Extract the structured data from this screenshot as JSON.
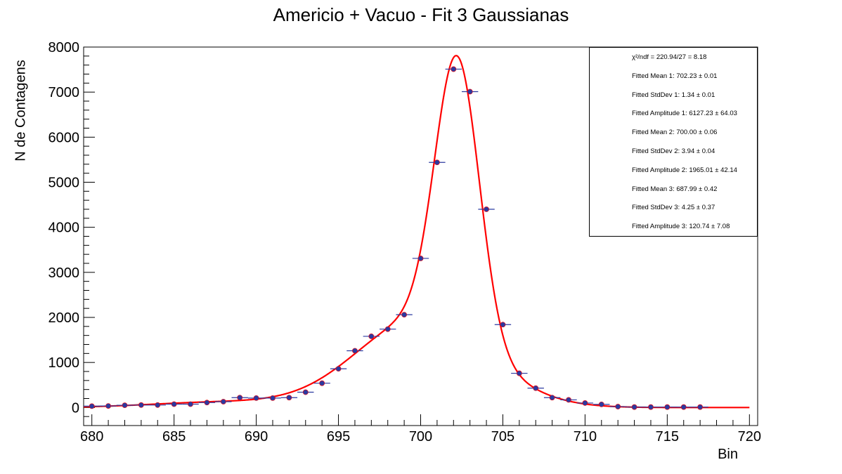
{
  "chart_data": {
    "type": "scatter",
    "title": "Americio + Vacuo - Fit 3 Gaussianas",
    "xlabel": "Bin",
    "ylabel": "N de Contagens",
    "xlim": [
      679.5,
      720.5
    ],
    "ylim": [
      -400,
      8000
    ],
    "x_ticks": [
      "680",
      "685",
      "690",
      "695",
      "700",
      "705",
      "710",
      "715",
      "720"
    ],
    "y_ticks": [
      "0",
      "1000",
      "2000",
      "3000",
      "4000",
      "5000",
      "6000",
      "7000",
      "8000"
    ],
    "grid": false,
    "legend_placement": "top-right",
    "series": [
      {
        "kind": "points",
        "color": "#2b3aa0",
        "x": [
          680,
          681,
          682,
          683,
          684,
          685,
          686,
          687,
          688,
          689,
          690,
          691,
          692,
          693,
          694,
          695,
          696,
          697,
          698,
          699,
          700,
          701,
          702,
          703,
          704,
          705,
          706,
          707,
          708,
          709,
          710,
          711,
          712,
          713,
          714,
          715,
          716,
          717
        ],
        "y": [
          30,
          35,
          50,
          55,
          55,
          75,
          75,
          110,
          130,
          220,
          210,
          210,
          220,
          340,
          540,
          860,
          1260,
          1580,
          1740,
          2060,
          3310,
          5440,
          7510,
          7010,
          4400,
          1840,
          760,
          430,
          220,
          170,
          100,
          70,
          20,
          10,
          10,
          10,
          10,
          10
        ]
      },
      {
        "kind": "fit",
        "color": "#ff0000",
        "model": "three gaussians",
        "params": {
          "mean1": 702.23,
          "sigma1": 1.34,
          "amp1": 6127.23,
          "mean2": 700.0,
          "sigma2": 3.94,
          "amp2": 1965.01,
          "mean3": 687.99,
          "sigma3": 4.25,
          "amp3": 120.74
        },
        "x_range": [
          679.5,
          720
        ]
      }
    ]
  },
  "stats": [
    "χ²/ndf = 220.94/27 = 8.18",
    "Fitted Mean 1: 702.23 ± 0.01",
    "Fitted StdDev 1: 1.34 ± 0.01",
    "Fitted Amplitude 1: 6127.23 ± 64.03",
    "Fitted Mean 2: 700.00 ± 0.06",
    "Fitted StdDev 2: 3.94 ± 0.04",
    "Fitted Amplitude 2: 1965.01 ± 42.14",
    "Fitted Mean 3: 687.99 ± 0.42",
    "Fitted StdDev 3: 4.25 ± 0.37",
    "Fitted Amplitude 3: 120.74 ± 7.08"
  ]
}
